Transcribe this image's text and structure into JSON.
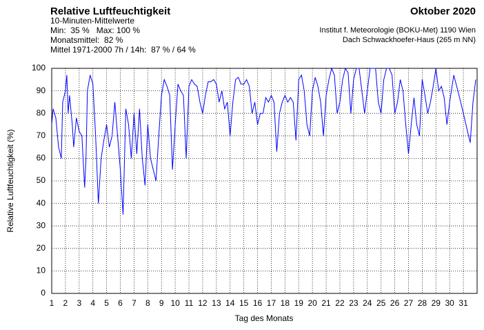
{
  "chart_data": {
    "type": "line",
    "title": "Relative Luftfeuchtigkeit",
    "subtitle": [
      "10-Minuten-Mittelwerte",
      "Min:  35 %   Max: 100 %",
      "Monatsmittel:  82 %",
      "Mittel 1971-2000 7h / 14h:  87 % / 64 %"
    ],
    "title_right": "Oktober 2020",
    "source": [
      "Institut f. Meteorologie (BOKU-Met) 1190 Wien",
      "Dach Schwackhoefer-Haus (265 m NN)"
    ],
    "xlabel": "Tag des Monats",
    "ylabel": "Relative Luftfeuchtigkeit (%)",
    "xlim": [
      1,
      32
    ],
    "ylim": [
      0,
      100
    ],
    "xticks": [
      1,
      2,
      3,
      4,
      5,
      6,
      7,
      8,
      9,
      10,
      11,
      12,
      13,
      14,
      15,
      16,
      17,
      18,
      19,
      20,
      21,
      22,
      23,
      24,
      25,
      26,
      27,
      28,
      29,
      30,
      31
    ],
    "yticks": [
      0,
      10,
      20,
      30,
      40,
      50,
      60,
      70,
      80,
      90,
      100
    ],
    "grid": true,
    "series": [
      {
        "name": "Relative Luftfeuchtigkeit",
        "color": "#0000ff",
        "x": [
          1.0,
          1.1,
          1.3,
          1.5,
          1.7,
          1.8,
          2.0,
          2.1,
          2.2,
          2.3,
          2.5,
          2.6,
          2.8,
          3.0,
          3.2,
          3.4,
          3.5,
          3.6,
          3.8,
          4.0,
          4.2,
          4.4,
          4.6,
          4.8,
          5.0,
          5.2,
          5.4,
          5.6,
          5.8,
          6.0,
          6.2,
          6.4,
          6.6,
          6.8,
          7.0,
          7.2,
          7.4,
          7.6,
          7.8,
          8.0,
          8.2,
          8.4,
          8.6,
          8.8,
          9.0,
          9.2,
          9.4,
          9.6,
          9.8,
          10.0,
          10.2,
          10.4,
          10.6,
          10.8,
          11.0,
          11.2,
          11.4,
          11.6,
          11.8,
          12.0,
          12.2,
          12.4,
          12.6,
          12.8,
          13.0,
          13.2,
          13.4,
          13.6,
          13.8,
          14.0,
          14.2,
          14.4,
          14.6,
          14.8,
          15.0,
          15.2,
          15.4,
          15.6,
          15.8,
          16.0,
          16.2,
          16.4,
          16.6,
          16.8,
          17.0,
          17.2,
          17.4,
          17.6,
          17.8,
          18.0,
          18.2,
          18.4,
          18.6,
          18.8,
          19.0,
          19.2,
          19.4,
          19.6,
          19.8,
          20.0,
          20.2,
          20.4,
          20.6,
          20.8,
          21.0,
          21.2,
          21.4,
          21.6,
          21.8,
          22.0,
          22.2,
          22.4,
          22.6,
          22.8,
          23.0,
          23.2,
          23.4,
          23.6,
          23.8,
          24.0,
          24.2,
          24.4,
          24.6,
          24.8,
          25.0,
          25.2,
          25.4,
          25.6,
          25.8,
          26.0,
          26.2,
          26.4,
          26.6,
          26.8,
          27.0,
          27.2,
          27.4,
          27.6,
          27.8,
          28.0,
          28.2,
          28.4,
          28.6,
          28.8,
          29.0,
          29.2,
          29.4,
          29.6,
          29.8,
          30.0,
          30.3,
          30.6,
          31.0,
          31.3,
          31.5,
          31.7,
          31.9
        ],
        "values": [
          75,
          82,
          78,
          65,
          60,
          85,
          90,
          97,
          80,
          88,
          75,
          65,
          78,
          72,
          70,
          47,
          60,
          90,
          97,
          93,
          70,
          40,
          60,
          68,
          75,
          65,
          70,
          85,
          70,
          55,
          35,
          82,
          75,
          60,
          80,
          62,
          82,
          60,
          48,
          75,
          60,
          55,
          50,
          70,
          88,
          95,
          92,
          88,
          55,
          75,
          93,
          90,
          88,
          60,
          92,
          95,
          93,
          92,
          85,
          80,
          88,
          94,
          94,
          95,
          93,
          85,
          90,
          82,
          85,
          70,
          85,
          95,
          96,
          93,
          93,
          95,
          92,
          80,
          85,
          75,
          80,
          80,
          87,
          85,
          88,
          85,
          63,
          80,
          85,
          88,
          85,
          87,
          85,
          68,
          95,
          97,
          90,
          75,
          70,
          90,
          96,
          92,
          85,
          70,
          88,
          95,
          100,
          97,
          80,
          85,
          95,
          100,
          98,
          80,
          95,
          100,
          100,
          90,
          80,
          90,
          100,
          100,
          100,
          85,
          80,
          95,
          100,
          100,
          97,
          80,
          85,
          95,
          90,
          75,
          62,
          75,
          87,
          75,
          70,
          95,
          88,
          80,
          85,
          92,
          100,
          90,
          92,
          87,
          75,
          85,
          97,
          90,
          80,
          72,
          67,
          85,
          95
        ]
      }
    ]
  }
}
